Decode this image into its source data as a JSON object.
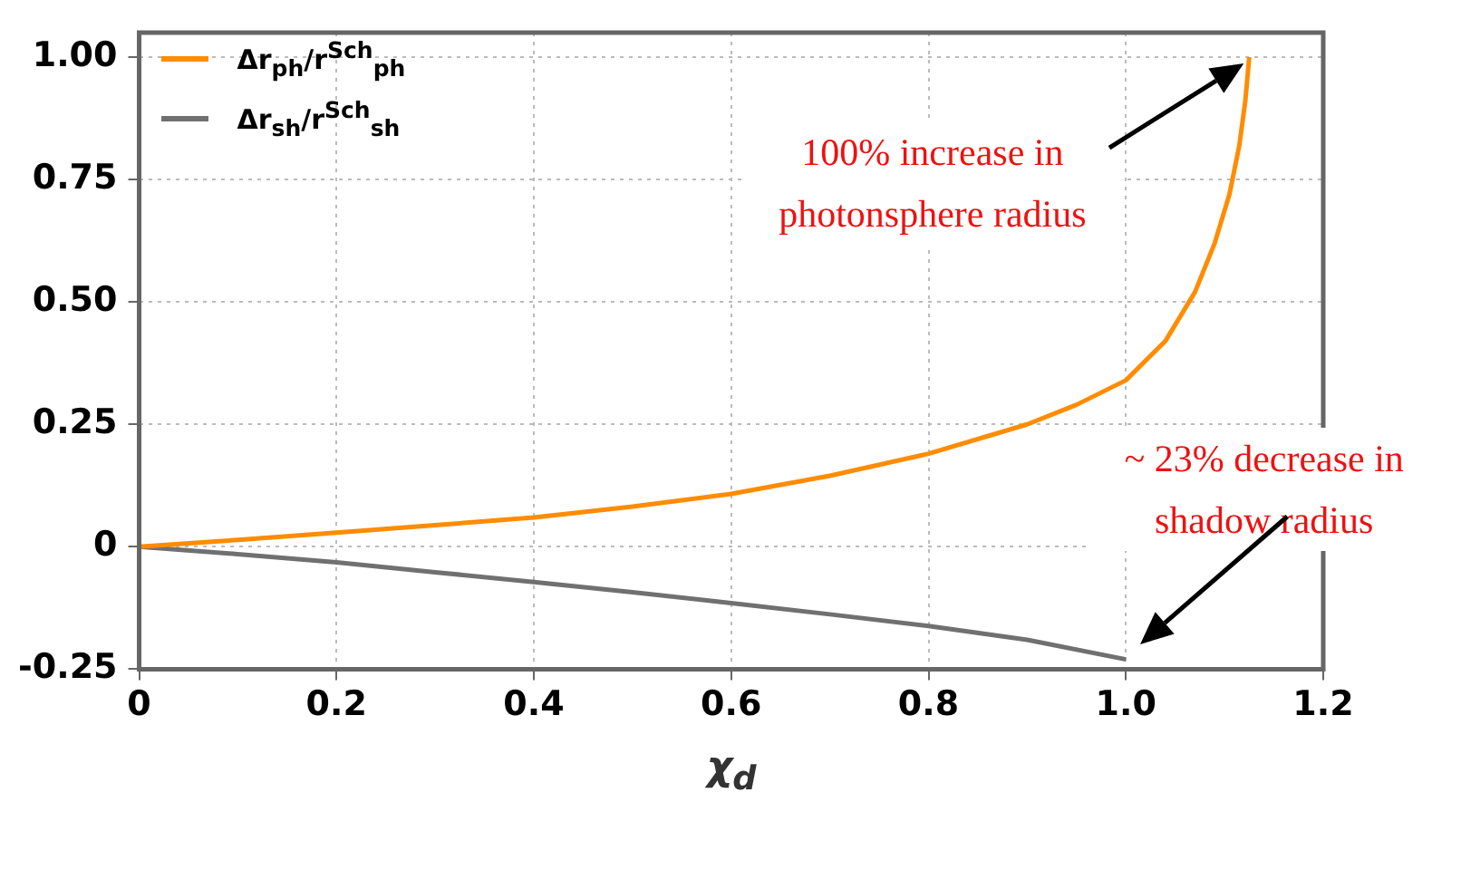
{
  "chart_data": {
    "type": "line",
    "xlabel": "χ$_{d}$",
    "xlim": [
      0,
      1.2
    ],
    "xticks": [
      0,
      0.2,
      0.4,
      0.6,
      0.8,
      {
        "value": 1,
        "label": "1.0"
      },
      1.2
    ],
    "ylim": [
      -0.25,
      1.05
    ],
    "yticks": [
      -0.25,
      0,
      0.25,
      {
        "value": 0.5,
        "label": "0.50"
      },
      0.75,
      {
        "value": 1,
        "label": "1.00"
      }
    ],
    "grid": true,
    "legend": "top left",
    "marker": "none",
    "line_style": "solid",
    "series": [
      {
        "name": "Δr$_{ph}$/r$^{Sch}$$_{ph}$",
        "color": "#ff8c00",
        "x": [
          0,
          0.1,
          0.2,
          0.3,
          0.4,
          0.5,
          0.6,
          0.7,
          0.8,
          0.9,
          0.95,
          1.0,
          1.04,
          1.07,
          1.09,
          1.105,
          1.115,
          1.121,
          1.125
        ],
        "values": [
          0,
          0.014,
          0.029,
          0.044,
          0.06,
          0.082,
          0.108,
          0.145,
          0.19,
          0.25,
          0.29,
          0.34,
          0.42,
          0.52,
          0.62,
          0.72,
          0.82,
          0.91,
          1.0
        ]
      },
      {
        "name": "Δr$_{sh}$/r$^{Sch}$$_{sh}$",
        "color": "#707070",
        "x": [
          0,
          0.1,
          0.2,
          0.3,
          0.4,
          0.5,
          0.6,
          0.7,
          0.8,
          0.9,
          1.0
        ],
        "values": [
          0,
          -0.015,
          -0.032,
          -0.052,
          -0.072,
          -0.093,
          -0.115,
          -0.138,
          -0.162,
          -0.19,
          -0.23
        ]
      }
    ],
    "annotations": [
      "100% increase in photonsphere radius",
      "~ 23% decrease in shadow radius"
    ]
  }
}
